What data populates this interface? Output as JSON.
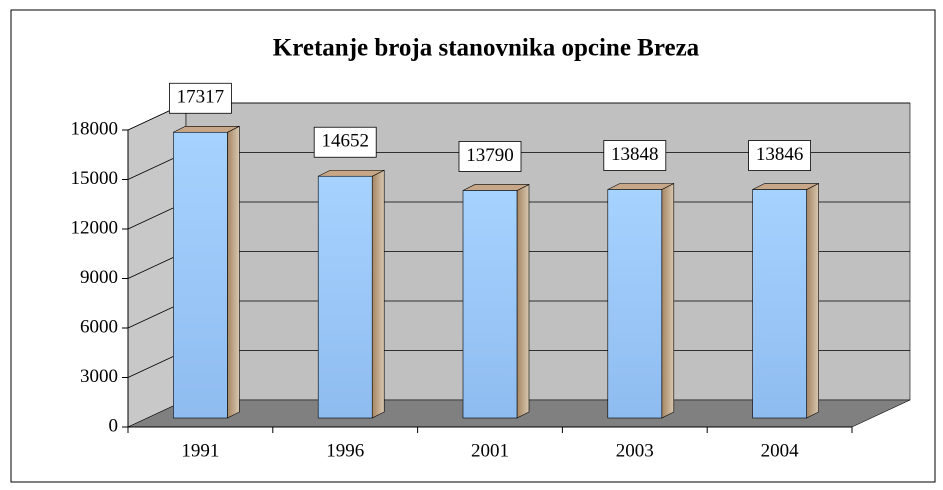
{
  "chart_data": {
    "type": "bar3d",
    "title": "Kretanje broja stanovnika opcine Breza",
    "categories": [
      "1991",
      "1996",
      "2001",
      "2003",
      "2004"
    ],
    "values": [
      17317,
      14652,
      13790,
      13848,
      13846
    ],
    "color": "#99ccff",
    "ylim": [
      0,
      18000
    ],
    "yticks": [
      0,
      3000,
      6000,
      9000,
      12000,
      15000,
      18000
    ],
    "grid": true
  }
}
